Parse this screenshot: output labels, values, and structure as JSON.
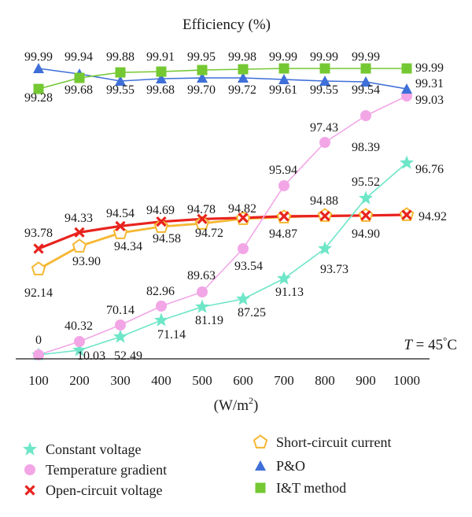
{
  "chart_data": {
    "type": "line",
    "title": "Efficiency (%)",
    "xlabel_base": "(W/m",
    "xlabel_sup": "2",
    "xlabel_end": ")",
    "x": [
      100,
      200,
      300,
      400,
      500,
      600,
      700,
      800,
      900,
      1000
    ],
    "annotation": {
      "text": "T = 45°C",
      "italic_part": "T",
      "rest": " = 45",
      "sup": "°",
      "end": "C"
    },
    "legend_position": "bottom",
    "series": [
      {
        "name": "Constant voltage",
        "marker": "star",
        "color": "#6ee6c8",
        "values": [
          0,
          10.03,
          52.49,
          71.14,
          81.19,
          87.25,
          91.13,
          93.73,
          95.52,
          96.76
        ]
      },
      {
        "name": "Temperature gradient",
        "marker": "circle",
        "color": "#f2a6e6",
        "values": [
          0,
          40.32,
          70.14,
          82.96,
          89.63,
          93.54,
          95.94,
          97.43,
          98.39,
          99.03
        ]
      },
      {
        "name": "Open-circuit voltage",
        "marker": "x",
        "color": "#e8231e",
        "values": [
          93.78,
          94.33,
          94.54,
          94.69,
          94.78,
          94.82,
          94.87,
          94.88,
          94.9,
          94.92
        ]
      },
      {
        "name": "Short-circuit current",
        "marker": "pentagon",
        "color": "#f5b731",
        "values": [
          92.14,
          93.9,
          94.34,
          94.58,
          94.72,
          94.82,
          94.87,
          94.88,
          94.9,
          94.92
        ]
      },
      {
        "name": "P&O",
        "marker": "triangle",
        "color": "#3f6fd8",
        "values": [
          99.99,
          99.94,
          99.55,
          99.68,
          99.7,
          99.72,
          99.61,
          99.55,
          99.54,
          99.31
        ]
      },
      {
        "name": "I&T method",
        "marker": "square",
        "color": "#74c832",
        "values": [
          99.28,
          99.68,
          99.88,
          99.91,
          99.95,
          99.98,
          99.99,
          99.99,
          99.99,
          99.99
        ]
      }
    ],
    "data_labels": {
      "constant_voltage": [
        "0",
        "10.03",
        "52.49",
        "71.14",
        "81.19",
        "87.25",
        "91.13",
        "93.73",
        "95.52",
        "96.76"
      ],
      "temperature_gradient": [
        "40.32",
        "70.14",
        "82.96",
        "89.63",
        "93.54",
        "95.94",
        "97.43",
        "98.39",
        "99.03"
      ],
      "open_circuit_voltage": [
        "93.78",
        "94.33",
        "94.54",
        "94.69",
        "94.78",
        "94.82",
        "94.87",
        "94.88",
        "94.90",
        "94.92"
      ],
      "short_circuit_current": [
        "92.14",
        "93.90",
        "94.34",
        "94.58",
        "94.72"
      ],
      "p_and_o": [
        "99.99",
        "99.94",
        "99.55",
        "99.68",
        "99.70",
        "99.72",
        "99.61",
        "99.55",
        "99.54",
        "99.31"
      ],
      "i_and_t": [
        "99.28",
        "99.68",
        "99.88",
        "99.91",
        "99.95",
        "99.98",
        "99.99",
        "99.99",
        "99.99",
        "99.99"
      ]
    }
  }
}
